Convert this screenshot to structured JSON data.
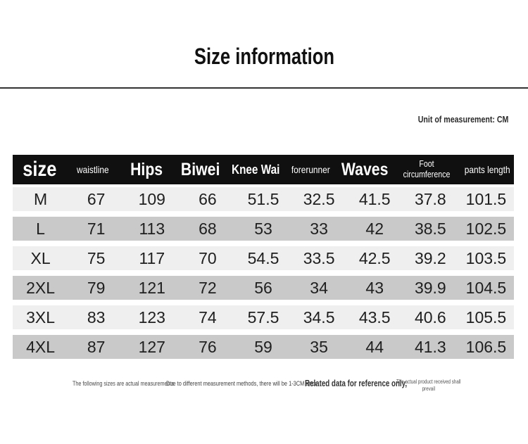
{
  "page": {
    "title": "Size information",
    "unit_note": "Unit of measurement: CM"
  },
  "colors": {
    "header_bg": "#101010",
    "row_light": "#efefef",
    "row_dark": "#c9c9c9",
    "divider": "#333333"
  },
  "table": {
    "columns": [
      {
        "label": "size",
        "scale": "xl"
      },
      {
        "label": "waistline",
        "scale": "sm"
      },
      {
        "label": "Hips",
        "scale": "lg"
      },
      {
        "label": "Biwei",
        "scale": "lg"
      },
      {
        "label": "Knee Wai",
        "scale": "md"
      },
      {
        "label": "forerunner",
        "scale": "sm"
      },
      {
        "label": "Waves",
        "scale": "lg"
      },
      {
        "label": "Foot circumference",
        "scale": "xs"
      },
      {
        "label": "pants length",
        "scale": "sm"
      }
    ],
    "rows": [
      {
        "size": "M",
        "values": [
          "67",
          "109",
          "66",
          "51.5",
          "32.5",
          "41.5",
          "37.8",
          "101.5"
        ]
      },
      {
        "size": "L",
        "values": [
          "71",
          "113",
          "68",
          "53",
          "33",
          "42",
          "38.5",
          "102.5"
        ]
      },
      {
        "size": "XL",
        "values": [
          "75",
          "117",
          "70",
          "54.5",
          "33.5",
          "42.5",
          "39.2",
          "103.5"
        ]
      },
      {
        "size": "2XL",
        "values": [
          "79",
          "121",
          "72",
          "56",
          "34",
          "43",
          "39.9",
          "104.5"
        ]
      },
      {
        "size": "3XL",
        "values": [
          "83",
          "123",
          "74",
          "57.5",
          "34.5",
          "43.5",
          "40.6",
          "105.5"
        ]
      },
      {
        "size": "4XL",
        "values": [
          "87",
          "127",
          "76",
          "59",
          "35",
          "44",
          "41.3",
          "106.5"
        ]
      }
    ]
  },
  "footnotes": {
    "note1": "The following sizes are actual measurements",
    "note2": "Due to different measurement methods, there will be 1-3CM error",
    "note3": "Related data for reference only,",
    "note4_line1": "The actual product received shall",
    "note4_line2": "prevail"
  }
}
